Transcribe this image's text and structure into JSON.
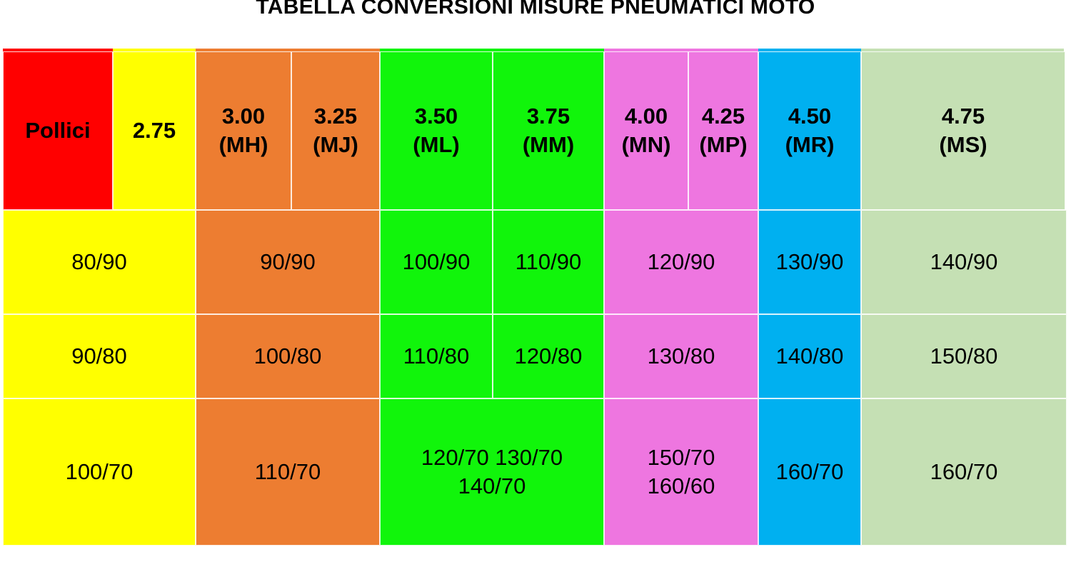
{
  "title": "TABELLA CONVERSIONI MISURE PNEUMATICI MOTO",
  "colors": {
    "red": "#ff0000",
    "yellow": "#ffff00",
    "orange": "#ed7d31",
    "green": "#11f50b",
    "pink": "#ee76e0",
    "blue": "#00b0f0",
    "sage": "#c5e0b4"
  },
  "header": {
    "pollici": "Pollici",
    "h275": "2.75",
    "h300": "3.00\n(MH)",
    "h325": "3.25\n(MJ)",
    "h350": "3.50\n(ML)",
    "h375": "3.75\n(MM)",
    "h400": "4.00\n(MN)",
    "h425": "4.25\n(MP)",
    "h450": "4.50\n(MR)",
    "h475": "4.75\n(MS)"
  },
  "rows": {
    "r90": {
      "yellow": "80/90",
      "orange": "90/90",
      "green1": "100/90",
      "green2": "110/90",
      "pink": "120/90",
      "blue": "130/90",
      "sage": "140/90"
    },
    "r80": {
      "yellow": "90/80",
      "orange": "100/80",
      "green1": "110/80",
      "green2": "120/80",
      "pink": "130/80",
      "blue": "140/80",
      "sage": "150/80"
    },
    "r70": {
      "yellow": "100/70",
      "orange": "110/70",
      "green": "120/70    130/70\n140/70",
      "pink": "150/70\n160/60",
      "blue": "160/70",
      "sage": "160/70"
    }
  }
}
